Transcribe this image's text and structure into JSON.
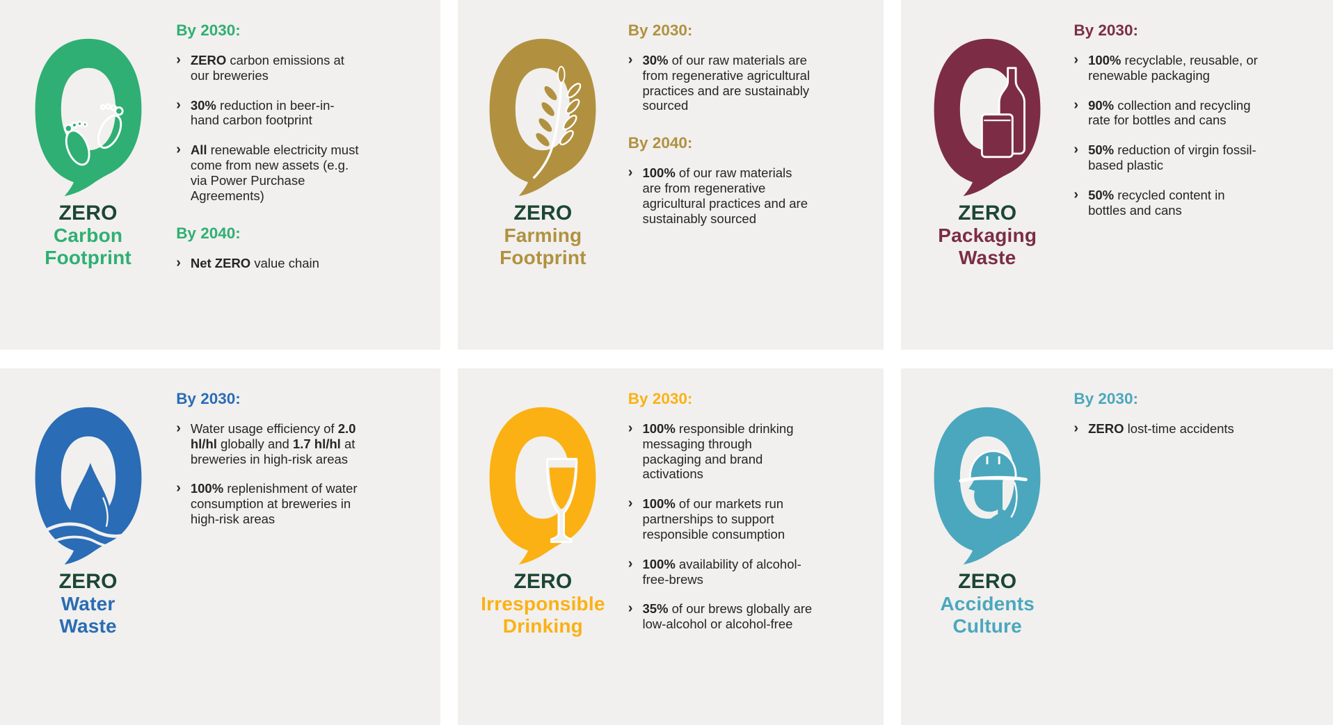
{
  "page": {
    "background": "#ffffff",
    "card_background": "#f1f0ee",
    "text_color": "#272425",
    "zero_word_color": "#1c4633",
    "bullet_char": "›"
  },
  "cards": [
    {
      "id": "carbon",
      "icon": "footprints-zero-icon",
      "theme_color": "#2faf73",
      "title_zero": "ZERO",
      "title_rest": "Carbon\nFootprint",
      "sections": [
        {
          "heading": "By 2030:",
          "bullets": [
            {
              "segments": [
                {
                  "text": "ZERO",
                  "bold": true
                },
                {
                  "text": " carbon emissions at our breweries",
                  "bold": false
                }
              ]
            },
            {
              "segments": [
                {
                  "text": "30%",
                  "bold": true
                },
                {
                  "text": " reduction in beer-in-hand carbon footprint",
                  "bold": false
                }
              ]
            },
            {
              "segments": [
                {
                  "text": "All",
                  "bold": true
                },
                {
                  "text": " renewable electricity must come from new assets (e.g. via Power Purchase Agreements)",
                  "bold": false
                }
              ]
            }
          ]
        },
        {
          "heading": "By 2040:",
          "bullets": [
            {
              "segments": [
                {
                  "text": "Net ZERO",
                  "bold": true
                },
                {
                  "text": " value chain",
                  "bold": false
                }
              ]
            }
          ]
        }
      ]
    },
    {
      "id": "farming",
      "icon": "wheat-zero-icon",
      "theme_color": "#b19140",
      "title_zero": "ZERO",
      "title_rest": "Farming\nFootprint",
      "sections": [
        {
          "heading": "By 2030:",
          "bullets": [
            {
              "segments": [
                {
                  "text": "30%",
                  "bold": true
                },
                {
                  "text": " of our raw materials are from regenerative agricultural practices and are sustainably sourced",
                  "bold": false
                }
              ]
            }
          ]
        },
        {
          "heading": "By 2040:",
          "bullets": [
            {
              "segments": [
                {
                  "text": "100%",
                  "bold": true
                },
                {
                  "text": " of our raw materials are from regenerative agricultural practices and are sustainably sourced",
                  "bold": false
                }
              ]
            }
          ]
        }
      ]
    },
    {
      "id": "packaging",
      "icon": "bottle-can-zero-icon",
      "theme_color": "#7c2d45",
      "title_zero": "ZERO",
      "title_rest": "Packaging\nWaste",
      "sections": [
        {
          "heading": "By 2030:",
          "bullets": [
            {
              "segments": [
                {
                  "text": "100%",
                  "bold": true
                },
                {
                  "text": " recyclable, reusable, or renewable packaging",
                  "bold": false
                }
              ]
            },
            {
              "segments": [
                {
                  "text": "90%",
                  "bold": true
                },
                {
                  "text": " collection and recycling rate for bottles and cans",
                  "bold": false
                }
              ]
            },
            {
              "segments": [
                {
                  "text": "50%",
                  "bold": true
                },
                {
                  "text": " reduction of virgin fossil-based plastic",
                  "bold": false
                }
              ]
            },
            {
              "segments": [
                {
                  "text": "50%",
                  "bold": true
                },
                {
                  "text": " recycled content in bottles and cans",
                  "bold": false
                }
              ]
            }
          ]
        }
      ]
    },
    {
      "id": "water",
      "icon": "water-drop-zero-icon",
      "theme_color": "#2a6cb5",
      "title_zero": "ZERO",
      "title_rest": "Water\nWaste",
      "sections": [
        {
          "heading": "By 2030:",
          "bullets": [
            {
              "segments": [
                {
                  "text": "Water usage efficiency of ",
                  "bold": false
                },
                {
                  "text": "2.0 hl/hl",
                  "bold": true
                },
                {
                  "text": " globally and ",
                  "bold": false
                },
                {
                  "text": "1.7 hl/hl",
                  "bold": true
                },
                {
                  "text": " at breweries in high-risk areas",
                  "bold": false
                }
              ]
            },
            {
              "segments": [
                {
                  "text": "100%",
                  "bold": true
                },
                {
                  "text": " replenishment of water consumption at breweries in high-risk areas",
                  "bold": false
                }
              ]
            }
          ]
        }
      ]
    },
    {
      "id": "drinking",
      "icon": "beer-glass-zero-icon",
      "theme_color": "#fbb114",
      "title_zero": "ZERO",
      "title_rest": "Irresponsible\nDrinking",
      "sections": [
        {
          "heading": "By 2030:",
          "bullets": [
            {
              "segments": [
                {
                  "text": "100%",
                  "bold": true
                },
                {
                  "text": " responsible drinking messaging through packaging and brand activations",
                  "bold": false
                }
              ]
            },
            {
              "segments": [
                {
                  "text": "100%",
                  "bold": true
                },
                {
                  "text": " of our markets run partnerships to support responsible consumption",
                  "bold": false
                }
              ]
            },
            {
              "segments": [
                {
                  "text": "100%",
                  "bold": true
                },
                {
                  "text": " availability of alcohol-free-brews",
                  "bold": false
                }
              ]
            },
            {
              "segments": [
                {
                  "text": "35%",
                  "bold": true
                },
                {
                  "text": " of our brews globally are low-alcohol or alcohol-free",
                  "bold": false
                }
              ]
            }
          ]
        }
      ]
    },
    {
      "id": "accidents",
      "icon": "hardhat-person-zero-icon",
      "theme_color": "#4ba7bd",
      "title_zero": "ZERO",
      "title_rest": "Accidents\nCulture",
      "sections": [
        {
          "heading": "By 2030:",
          "bullets": [
            {
              "segments": [
                {
                  "text": "ZERO",
                  "bold": true
                },
                {
                  "text": " lost-time accidents",
                  "bold": false
                }
              ]
            }
          ]
        }
      ]
    }
  ]
}
